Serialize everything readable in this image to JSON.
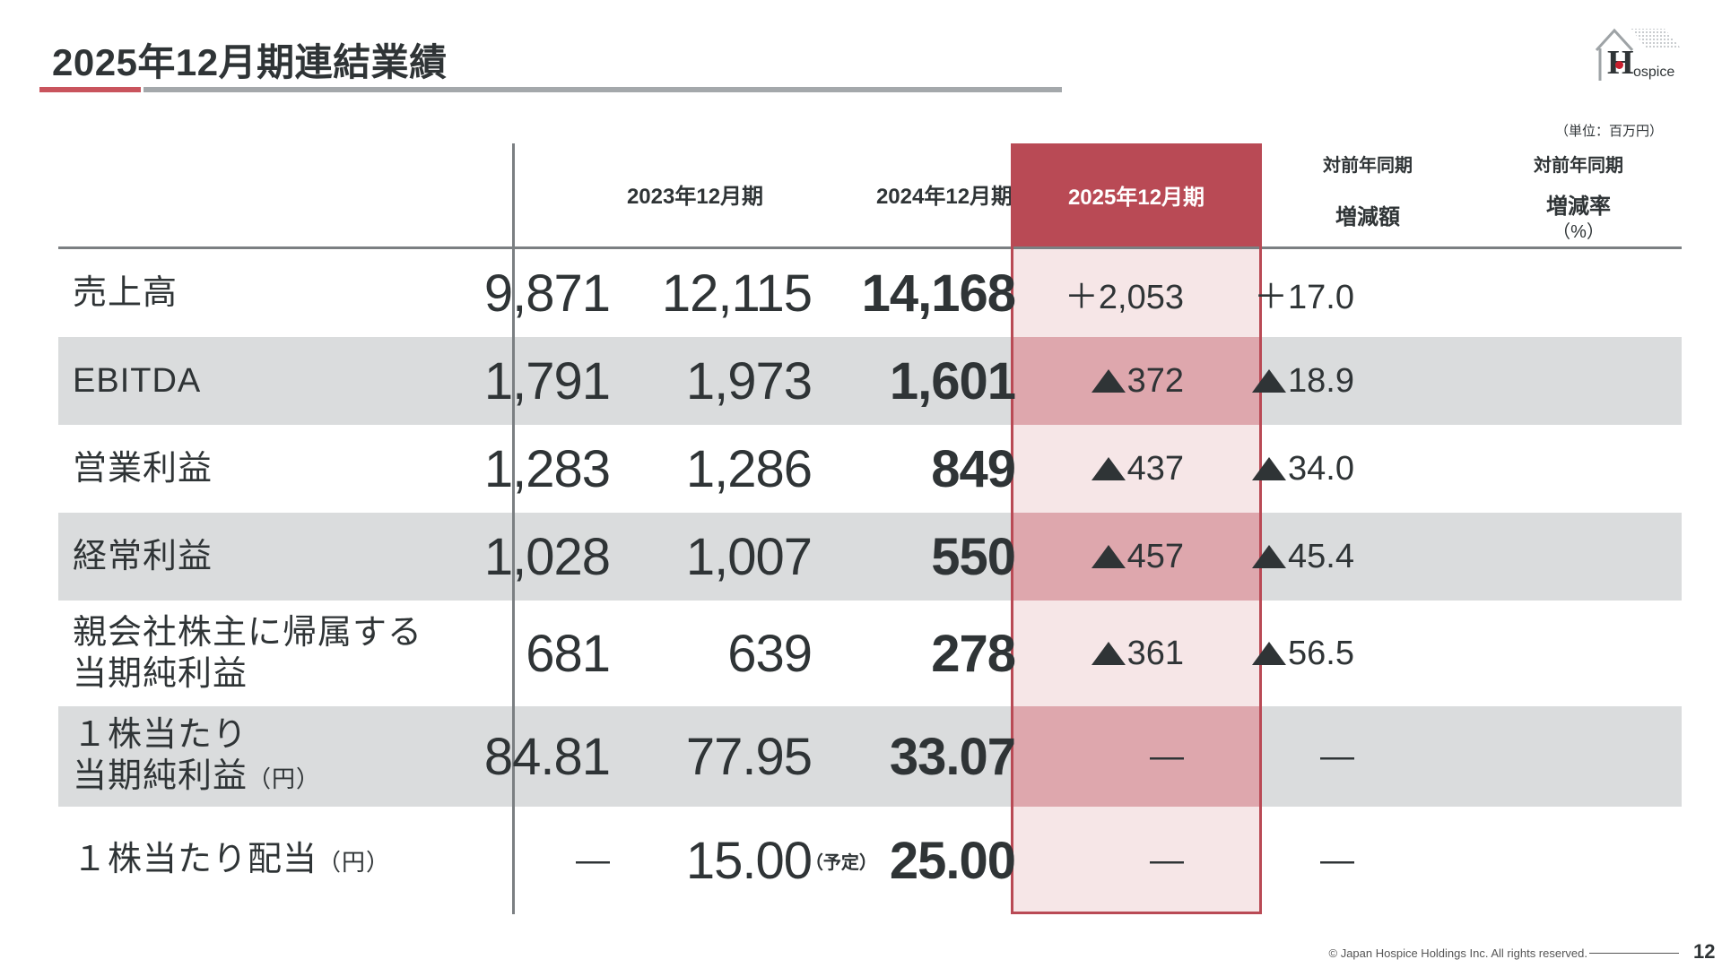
{
  "title": "2025年12月期連結業績",
  "logo": {
    "letter": "H",
    "text": "ospice"
  },
  "unit": "（単位：百万円）",
  "columns": {
    "y2023": "2023年12月期",
    "y2024": "2024年12月期",
    "y2025": "2025年12月期",
    "chg_amount_top": "対前年同期",
    "chg_amount_bottom": "増減額",
    "chg_rate_top": "対前年同期",
    "chg_rate_bottom": "増減率",
    "chg_rate_unit": "（%）"
  },
  "rows": [
    {
      "label1": "売上高",
      "label2": "",
      "sub": "",
      "v2023": "9,871",
      "v2024": "12,115",
      "v2025": "14,168",
      "note": "",
      "chg_neg": false,
      "chg": "＋2,053",
      "rate_neg": false,
      "rate": "＋17.0"
    },
    {
      "label1": "EBITDA",
      "label2": "",
      "sub": "",
      "v2023": "1,791",
      "v2024": "1,973",
      "v2025": "1,601",
      "note": "",
      "chg_neg": true,
      "chg": "372",
      "rate_neg": true,
      "rate": "18.9"
    },
    {
      "label1": "営業利益",
      "label2": "",
      "sub": "",
      "v2023": "1,283",
      "v2024": "1,286",
      "v2025": "849",
      "note": "",
      "chg_neg": true,
      "chg": "437",
      "rate_neg": true,
      "rate": "34.0"
    },
    {
      "label1": "経常利益",
      "label2": "",
      "sub": "",
      "v2023": "1,028",
      "v2024": "1,007",
      "v2025": "550",
      "note": "",
      "chg_neg": true,
      "chg": "457",
      "rate_neg": true,
      "rate": "45.4"
    },
    {
      "label1": "親会社株主に帰属する",
      "label2": "当期純利益",
      "sub": "",
      "v2023": "681",
      "v2024": "639",
      "v2025": "278",
      "note": "",
      "chg_neg": true,
      "chg": "361",
      "rate_neg": true,
      "rate": "56.5"
    },
    {
      "label1": "１株当たり",
      "label2": "当期純利益",
      "sub": "（円）",
      "v2023": "84.81",
      "v2024": "77.95",
      "v2025": "33.07",
      "note": "",
      "chg_neg": false,
      "chg": "—",
      "rate_neg": false,
      "rate": "—"
    },
    {
      "label1": "１株当たり配当",
      "label2": "",
      "sub": "（円）",
      "v2023": "—",
      "v2024": "15.00",
      "v2025": "25.00",
      "note": "（予定）",
      "chg_neg": false,
      "chg": "—",
      "rate_neg": false,
      "rate": "—"
    }
  ],
  "footer": "© Japan Hospice Holdings Inc. All rights reserved.",
  "page_number": "12",
  "colors": {
    "accent": "#b94a55",
    "highlight_light": "#f6e6e7",
    "highlight_dark": "#dea7ad",
    "row_gray": "#dadcdd"
  }
}
